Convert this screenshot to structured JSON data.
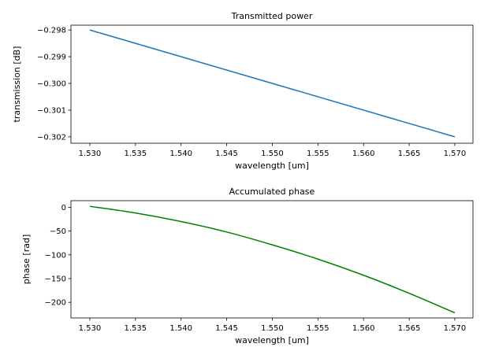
{
  "chart_data": [
    {
      "type": "line",
      "title": "Transmitted power",
      "xlabel": "wavelength [um]",
      "ylabel": "transmission [dB]",
      "xlim": [
        1.52793,
        1.57199
      ],
      "ylim": [
        -0.30224,
        -0.29782
      ],
      "xticks": [
        1.53,
        1.535,
        1.54,
        1.545,
        1.55,
        1.555,
        1.56,
        1.565,
        1.57
      ],
      "xtick_labels": [
        "1.530",
        "1.535",
        "1.540",
        "1.545",
        "1.550",
        "1.555",
        "1.560",
        "1.565",
        "1.570"
      ],
      "yticks": [
        -0.298,
        -0.299,
        -0.3,
        -0.301,
        -0.302
      ],
      "ytick_labels": [
        "−0.298",
        "−0.299",
        "−0.300",
        "−0.301",
        "−0.302"
      ],
      "grid": false,
      "series": [
        {
          "name": "transmission",
          "color": "#1f77b4",
          "x": [
            1.53,
            1.57
          ],
          "y": [
            -0.298,
            -0.302
          ]
        }
      ]
    },
    {
      "type": "line",
      "title": "Accumulated phase",
      "xlabel": "wavelength [um]",
      "ylabel": "phase [rad]",
      "xlim": [
        1.52793,
        1.57199
      ],
      "ylim": [
        -232.8,
        13.9
      ],
      "xticks": [
        1.53,
        1.535,
        1.54,
        1.545,
        1.55,
        1.555,
        1.56,
        1.565,
        1.57
      ],
      "xtick_labels": [
        "1.530",
        "1.535",
        "1.540",
        "1.545",
        "1.550",
        "1.555",
        "1.560",
        "1.565",
        "1.570"
      ],
      "yticks": [
        0,
        -50,
        -100,
        -150,
        -200
      ],
      "ytick_labels": [
        "0",
        "−50",
        "−100",
        "−150",
        "−200"
      ],
      "grid": false,
      "series": [
        {
          "name": "phase",
          "color": "#008000",
          "x": [
            1.53,
            1.535,
            1.54,
            1.545,
            1.55,
            1.555,
            1.56,
            1.565,
            1.57
          ],
          "y": [
            2,
            -12,
            -30,
            -52,
            -79,
            -109,
            -143,
            -181,
            -222
          ]
        }
      ]
    }
  ]
}
